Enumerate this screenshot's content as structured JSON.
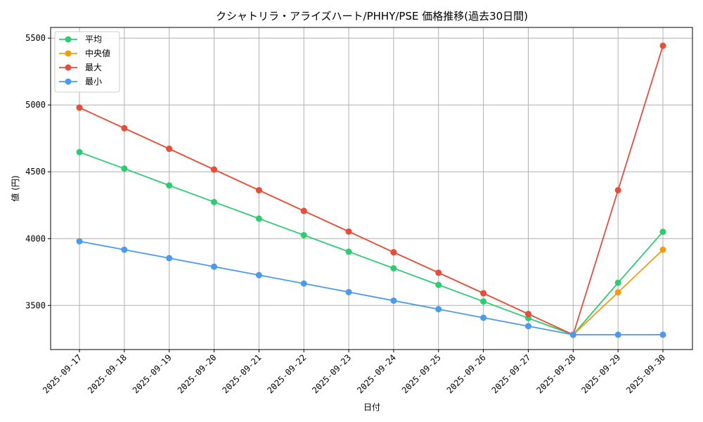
{
  "chart_data": {
    "type": "line",
    "title": "クシャトリラ・アライズハート/PHHY/PSE 価格推移(過去30日間)",
    "xlabel": "日付",
    "ylabel": "値 (円)",
    "x": [
      "2025-09-17",
      "2025-09-18",
      "2025-09-19",
      "2025-09-20",
      "2025-09-21",
      "2025-09-22",
      "2025-09-23",
      "2025-09-24",
      "2025-09-25",
      "2025-09-26",
      "2025-09-27",
      "2025-09-28",
      "2025-09-29",
      "2025-09-30"
    ],
    "yticks": [
      3500,
      4000,
      4500,
      5000,
      5500
    ],
    "ylim": [
      3170,
      5580
    ],
    "grid": true,
    "legend_position": "top-left",
    "series": [
      {
        "name": "平均",
        "color": "#2ecc71",
        "values": [
          4647,
          4524,
          4398,
          4274,
          4150,
          4026,
          3902,
          3778,
          3654,
          3530,
          3405,
          3281,
          3670,
          4051
        ]
      },
      {
        "name": "中央値",
        "color": "#f39c12",
        "values": [
          4980,
          4826,
          4672,
          4517,
          4362,
          4207,
          4053,
          3898,
          3745,
          3591,
          3436,
          3281,
          3598,
          3917
        ]
      },
      {
        "name": "最大",
        "color": "#e74c3c",
        "values": [
          4980,
          4826,
          4672,
          4517,
          4362,
          4207,
          4053,
          3898,
          3745,
          3591,
          3436,
          3281,
          4362,
          5443
        ]
      },
      {
        "name": "最小",
        "color": "#4a9af0",
        "values": [
          3980,
          3917,
          3854,
          3790,
          3727,
          3664,
          3600,
          3536,
          3472,
          3408,
          3345,
          3281,
          3281,
          3281
        ]
      }
    ]
  }
}
